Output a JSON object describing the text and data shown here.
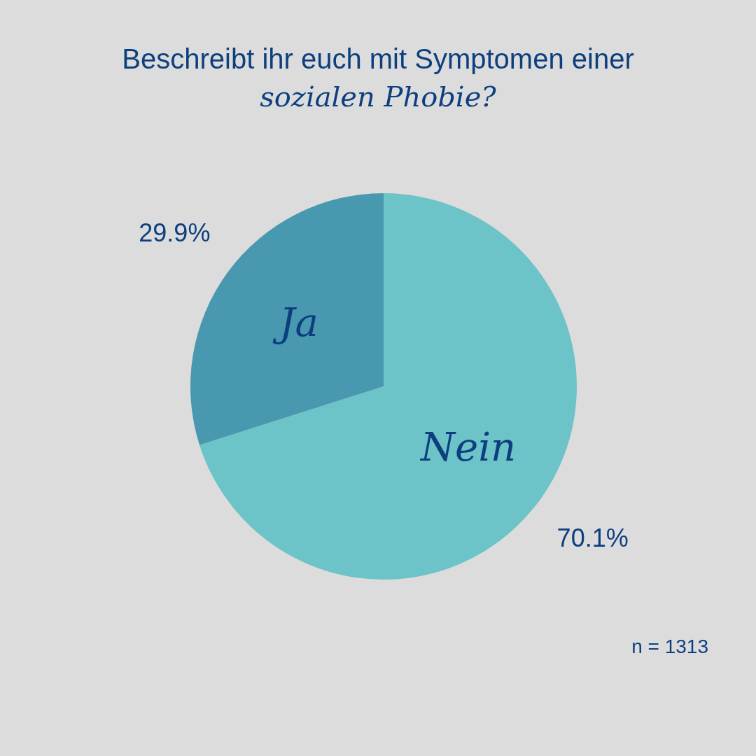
{
  "chart_data": {
    "type": "pie",
    "title": "Beschreibt ihr euch mit Symptomen einer",
    "subtitle": "sozialen Phobie?",
    "categories": [
      "Nein",
      "Ja"
    ],
    "values": [
      70.1,
      29.9
    ],
    "colors": [
      "#6cc3c8",
      "#4899b0"
    ],
    "value_labels": [
      "70.1%",
      "29.9%"
    ],
    "legend": false,
    "annotations": [
      "n = 1313"
    ]
  }
}
